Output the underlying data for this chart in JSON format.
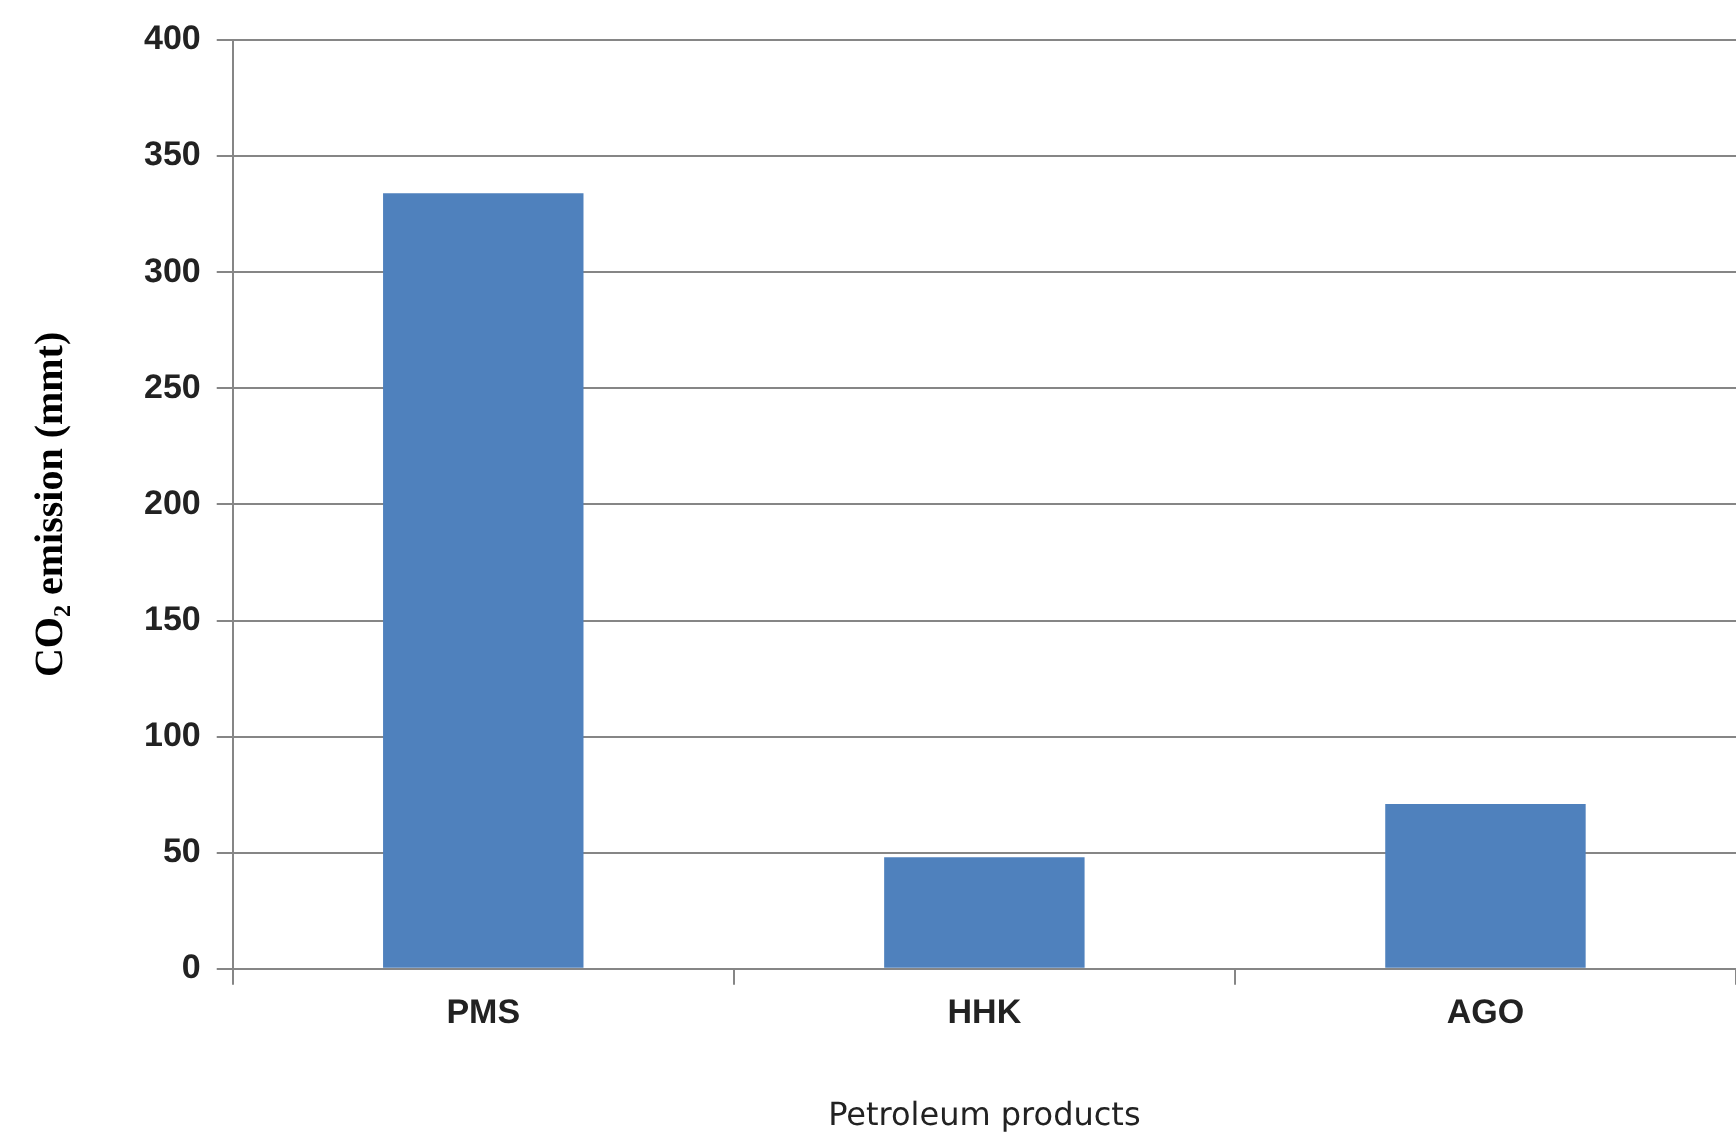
{
  "chart_data": {
    "type": "bar",
    "xlabel": "Petroleum products",
    "ylabel": "CO₂ emission (mmt)",
    "categories": [
      "PMS",
      "HHK",
      "AGO"
    ],
    "values": [
      334,
      48,
      71
    ],
    "color": "#4f81bd",
    "ylim": [
      0,
      400
    ],
    "yticks": [
      0,
      50,
      100,
      150,
      200,
      250,
      300,
      350,
      400
    ],
    "grid": "y",
    "legend": false
  }
}
